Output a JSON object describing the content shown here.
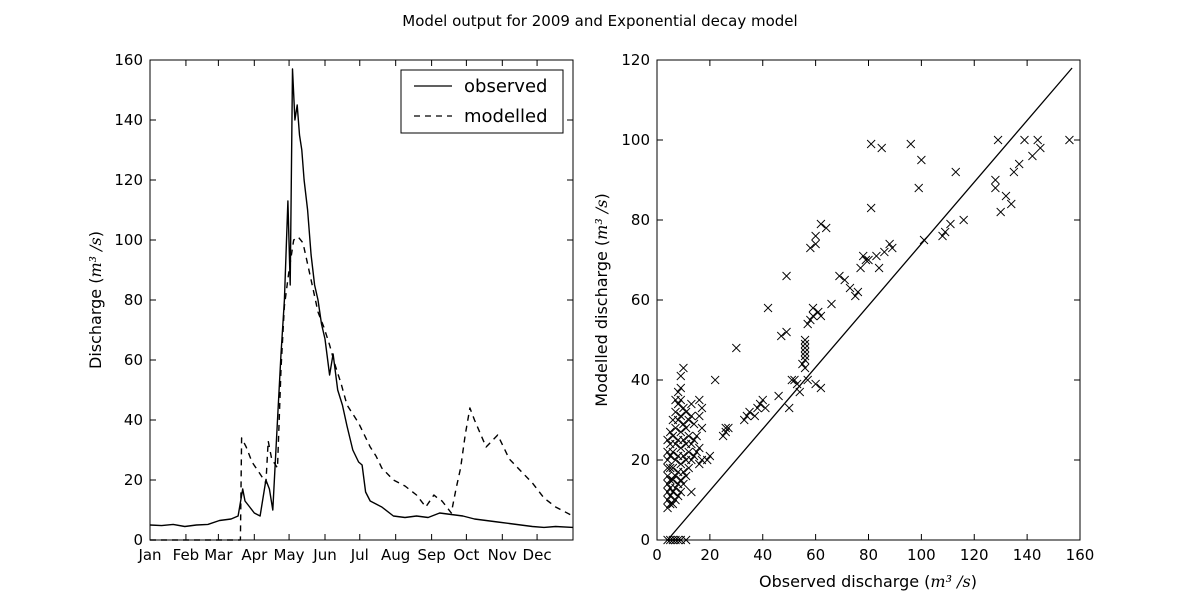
{
  "figure": {
    "title": "Model output for 2009 and Exponential decay model"
  },
  "chart_data": [
    {
      "type": "line",
      "xlabel": "",
      "ylabel_prefix": "Discharge (",
      "ylabel_unit": "m³ /s",
      "ylabel_suffix": ")",
      "ylim": [
        0,
        160
      ],
      "yticks": [
        "0",
        "20",
        "40",
        "60",
        "80",
        "100",
        "120",
        "140",
        "160"
      ],
      "x_months": [
        "Jan",
        "Feb",
        "Mar",
        "Apr",
        "May",
        "Jun",
        "Jul",
        "Aug",
        "Sep",
        "Oct",
        "Nov",
        "Dec"
      ],
      "legend": {
        "position": "top-right"
      },
      "series": [
        {
          "name": "observed",
          "style": "solid",
          "x": [
            0,
            10,
            20,
            30,
            40,
            50,
            60,
            70,
            76,
            80,
            82,
            86,
            90,
            95,
            100,
            103,
            106,
            110,
            113,
            116,
            119,
            121,
            123,
            125,
            127,
            129,
            131,
            133,
            136,
            139,
            142,
            145,
            148,
            151,
            155,
            158,
            162,
            166,
            170,
            175,
            180,
            183,
            186,
            190,
            195,
            200,
            210,
            220,
            230,
            240,
            250,
            260,
            270,
            280,
            290,
            300,
            310,
            320,
            330,
            340,
            350,
            365
          ],
          "y": [
            5,
            4.8,
            5.2,
            4.5,
            5,
            5.2,
            6.5,
            7,
            8,
            17,
            13,
            11,
            9,
            8,
            20,
            17,
            10,
            40,
            62,
            80,
            113,
            85,
            157,
            140,
            145,
            135,
            130,
            120,
            110,
            95,
            85,
            80,
            72,
            67,
            55,
            62,
            50,
            45,
            38,
            30,
            26,
            25,
            16,
            13,
            12,
            11,
            8,
            7.5,
            8,
            7.5,
            9,
            8.5,
            8,
            7,
            6.5,
            6,
            5.5,
            5,
            4.5,
            4.2,
            4.5,
            4.2
          ]
        },
        {
          "name": "modelled",
          "style": "dashed",
          "x": [
            0,
            50,
            78,
            79,
            83,
            88,
            95,
            100,
            102,
            105,
            110,
            113,
            116,
            120,
            124,
            128,
            132,
            136,
            140,
            145,
            150,
            155,
            160,
            165,
            170,
            175,
            180,
            185,
            190,
            195,
            200,
            210,
            220,
            230,
            238,
            245,
            248,
            252,
            256,
            260,
            264,
            268,
            272,
            276,
            280,
            290,
            300,
            310,
            320,
            330,
            340,
            350,
            365
          ],
          "y": [
            0,
            0,
            0,
            34,
            31,
            26,
            22,
            19,
            33,
            27,
            24,
            57,
            78,
            90,
            100,
            101,
            99,
            92,
            85,
            76,
            71,
            65,
            58,
            52,
            45,
            42,
            39,
            35,
            31,
            28,
            24,
            20,
            18,
            15,
            11,
            15,
            14,
            13,
            11,
            9,
            17,
            24,
            35,
            44,
            40,
            31,
            35,
            27,
            23,
            19,
            14,
            11,
            8
          ]
        }
      ]
    },
    {
      "type": "scatter",
      "xlabel_prefix": "Observed discharge (",
      "xlabel_unit": "m³ /s",
      "xlabel_suffix": ")",
      "ylabel_prefix": "Modelled discharge (",
      "ylabel_unit": "m³ /s",
      "ylabel_suffix": ")",
      "xlim": [
        0,
        160
      ],
      "ylim": [
        0,
        120
      ],
      "xticks": [
        "0",
        "20",
        "40",
        "60",
        "80",
        "100",
        "120",
        "140",
        "160"
      ],
      "yticks": [
        "0",
        "20",
        "40",
        "60",
        "80",
        "100",
        "120"
      ],
      "marker": "x",
      "fit_line": {
        "x": [
          4,
          157
        ],
        "y": [
          0,
          118
        ]
      },
      "points": [
        [
          4,
          0
        ],
        [
          5,
          0
        ],
        [
          6,
          0
        ],
        [
          7,
          0
        ],
        [
          8,
          0
        ],
        [
          9,
          0
        ],
        [
          11,
          0
        ],
        [
          4,
          8
        ],
        [
          4,
          10
        ],
        [
          4,
          12
        ],
        [
          4,
          14
        ],
        [
          4,
          16
        ],
        [
          4,
          18
        ],
        [
          4,
          20
        ],
        [
          4,
          22
        ],
        [
          4,
          25
        ],
        [
          5,
          9
        ],
        [
          5,
          11
        ],
        [
          5,
          13
        ],
        [
          5,
          15
        ],
        [
          5,
          18
        ],
        [
          5,
          21
        ],
        [
          5,
          24
        ],
        [
          5,
          27
        ],
        [
          6,
          9
        ],
        [
          6,
          12
        ],
        [
          6,
          15
        ],
        [
          6,
          18
        ],
        [
          6,
          22
        ],
        [
          6,
          26
        ],
        [
          6,
          30
        ],
        [
          7,
          10
        ],
        [
          7,
          13
        ],
        [
          7,
          16
        ],
        [
          7,
          20
        ],
        [
          7,
          24
        ],
        [
          7,
          28
        ],
        [
          7,
          32
        ],
        [
          7,
          35
        ],
        [
          8,
          11
        ],
        [
          8,
          14
        ],
        [
          8,
          17
        ],
        [
          8,
          21
        ],
        [
          8,
          25
        ],
        [
          8,
          30
        ],
        [
          8,
          34
        ],
        [
          8,
          37
        ],
        [
          9,
          12
        ],
        [
          9,
          15
        ],
        [
          9,
          19
        ],
        [
          9,
          23
        ],
        [
          9,
          27
        ],
        [
          9,
          31
        ],
        [
          9,
          35
        ],
        [
          9,
          38
        ],
        [
          9,
          41
        ],
        [
          10,
          14
        ],
        [
          10,
          17
        ],
        [
          10,
          21
        ],
        [
          10,
          25
        ],
        [
          10,
          29
        ],
        [
          10,
          33
        ],
        [
          10,
          43
        ],
        [
          11,
          16
        ],
        [
          11,
          20
        ],
        [
          11,
          24
        ],
        [
          11,
          28
        ],
        [
          11,
          32
        ],
        [
          12,
          18
        ],
        [
          12,
          22
        ],
        [
          12,
          26
        ],
        [
          12,
          30
        ],
        [
          13,
          12
        ],
        [
          13,
          20
        ],
        [
          13,
          24
        ],
        [
          13,
          31
        ],
        [
          13,
          34
        ],
        [
          14,
          21
        ],
        [
          14,
          25
        ],
        [
          14,
          29
        ],
        [
          15,
          22
        ],
        [
          15,
          26
        ],
        [
          16,
          19
        ],
        [
          16,
          23
        ],
        [
          16,
          31
        ],
        [
          16,
          35
        ],
        [
          17,
          20
        ],
        [
          17,
          28
        ],
        [
          17,
          33
        ],
        [
          19,
          20
        ],
        [
          20,
          21
        ],
        [
          22,
          40
        ],
        [
          25,
          26
        ],
        [
          26,
          28
        ],
        [
          26,
          27
        ],
        [
          27,
          28
        ],
        [
          30,
          48
        ],
        [
          33,
          30
        ],
        [
          34,
          31
        ],
        [
          35,
          32
        ],
        [
          37,
          31
        ],
        [
          38,
          33
        ],
        [
          39,
          34
        ],
        [
          40,
          35
        ],
        [
          41,
          33
        ],
        [
          42,
          58
        ],
        [
          46,
          36
        ],
        [
          47,
          51
        ],
        [
          49,
          52
        ],
        [
          49,
          66
        ],
        [
          50,
          33
        ],
        [
          51,
          40
        ],
        [
          52,
          40
        ],
        [
          53,
          39
        ],
        [
          54,
          37
        ],
        [
          55,
          44
        ],
        [
          56,
          45
        ],
        [
          56,
          46
        ],
        [
          56,
          47
        ],
        [
          56,
          48
        ],
        [
          56,
          49
        ],
        [
          56,
          50
        ],
        [
          56,
          43
        ],
        [
          57,
          54
        ],
        [
          57,
          40
        ],
        [
          58,
          55
        ],
        [
          58,
          73
        ],
        [
          59,
          56
        ],
        [
          59,
          58
        ],
        [
          60,
          39
        ],
        [
          60,
          74
        ],
        [
          60,
          76
        ],
        [
          61,
          57
        ],
        [
          62,
          56
        ],
        [
          62,
          38
        ],
        [
          62,
          79
        ],
        [
          64,
          78
        ],
        [
          66,
          59
        ],
        [
          69,
          66
        ],
        [
          71,
          65
        ],
        [
          73,
          63
        ],
        [
          75,
          61
        ],
        [
          76,
          62
        ],
        [
          77,
          68
        ],
        [
          78,
          71
        ],
        [
          79,
          70
        ],
        [
          80,
          70
        ],
        [
          81,
          83
        ],
        [
          81,
          99
        ],
        [
          83,
          71
        ],
        [
          84,
          68
        ],
        [
          85,
          98
        ],
        [
          86,
          72
        ],
        [
          88,
          74
        ],
        [
          89,
          73
        ],
        [
          96,
          99
        ],
        [
          99,
          88
        ],
        [
          100,
          95
        ],
        [
          101,
          75
        ],
        [
          108,
          76
        ],
        [
          109,
          77
        ],
        [
          111,
          79
        ],
        [
          113,
          92
        ],
        [
          116,
          80
        ],
        [
          128,
          88
        ],
        [
          128,
          90
        ],
        [
          129,
          100
        ],
        [
          130,
          82
        ],
        [
          132,
          86
        ],
        [
          134,
          84
        ],
        [
          135,
          92
        ],
        [
          137,
          94
        ],
        [
          139,
          100
        ],
        [
          142,
          96
        ],
        [
          144,
          100
        ],
        [
          145,
          98
        ],
        [
          156,
          100
        ]
      ]
    }
  ]
}
